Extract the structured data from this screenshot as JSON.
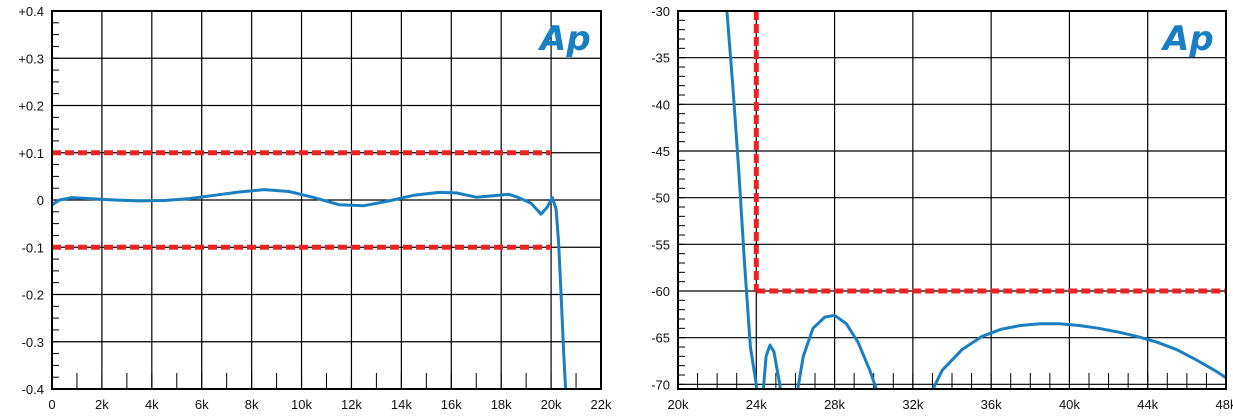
{
  "logo_text": "Ap",
  "colors": {
    "response_line": "#1a7fc1",
    "limit_line": "#ee2222",
    "grid": "#000000",
    "background": "#ffffff",
    "logo": "#1a7fc1"
  },
  "chart_data": [
    {
      "type": "line",
      "title": "",
      "xlabel": "",
      "ylabel": "",
      "xlim": [
        0,
        22000
      ],
      "ylim": [
        -0.4,
        0.4
      ],
      "grid": true,
      "legend": "none",
      "x_tick_values": [
        0,
        2000,
        4000,
        6000,
        8000,
        10000,
        12000,
        14000,
        16000,
        18000,
        20000,
        22000
      ],
      "x_tick_labels": [
        "0",
        "2k",
        "4k",
        "6k",
        "8k",
        "10k",
        "12k",
        "14k",
        "16k",
        "18k",
        "20k",
        "22k"
      ],
      "y_tick_values": [
        0.4,
        0.3,
        0.2,
        0.1,
        0,
        -0.1,
        -0.2,
        -0.3,
        -0.4
      ],
      "y_tick_labels": [
        "+0.4",
        "+0.3",
        "+0.2",
        "+0.1",
        "0",
        "-0.1",
        "-0.2",
        "-0.3",
        "-0.4"
      ],
      "series": [
        {
          "role": "response",
          "x": [
            0,
            300,
            800,
            1500,
            2500,
            3500,
            4500,
            5500,
            6500,
            7500,
            8500,
            9500,
            10500,
            11500,
            12500,
            13500,
            14500,
            15500,
            16200,
            17000,
            17700,
            18300,
            18700,
            19200,
            19600,
            19850,
            20050,
            20200,
            20300,
            20400,
            20500,
            20600
          ],
          "y": [
            -0.01,
            0.0,
            0.005,
            0.003,
            0.0,
            -0.002,
            -0.001,
            0.003,
            0.01,
            0.017,
            0.022,
            0.018,
            0.005,
            -0.01,
            -0.012,
            -0.002,
            0.01,
            0.016,
            0.015,
            0.006,
            0.009,
            0.012,
            0.005,
            -0.007,
            -0.03,
            -0.015,
            0.005,
            -0.02,
            -0.09,
            -0.2,
            -0.32,
            -0.42
          ]
        }
      ],
      "limits": [
        {
          "y": 0.1,
          "x_start": 0,
          "x_end": 20000
        },
        {
          "y": -0.1,
          "x_start": 0,
          "x_end": 20000
        }
      ]
    },
    {
      "type": "line",
      "title": "",
      "xlabel": "",
      "ylabel": "",
      "xlim": [
        20000,
        48000
      ],
      "ylim": [
        -70.5,
        -30
      ],
      "grid": true,
      "legend": "none",
      "x_tick_values": [
        20000,
        24000,
        28000,
        32000,
        36000,
        40000,
        44000,
        48000
      ],
      "x_tick_labels": [
        "20k",
        "24k",
        "28k",
        "32k",
        "36k",
        "40k",
        "44k",
        "48k"
      ],
      "y_tick_values": [
        -30,
        -35,
        -40,
        -45,
        -50,
        -55,
        -60,
        -65,
        -70
      ],
      "y_tick_labels": [
        "-30",
        "-35",
        "-40",
        "-45",
        "-50",
        "-55",
        "-60",
        "-65",
        "-70"
      ],
      "series": [
        {
          "role": "response",
          "x": [
            22500,
            22800,
            23100,
            23400,
            23700,
            24000,
            24100
          ],
          "y": [
            -30,
            -38,
            -47,
            -57,
            -66,
            -70,
            -72
          ]
        },
        {
          "role": "response",
          "x": [
            24300,
            24500,
            24700,
            24900,
            25200,
            25300
          ],
          "y": [
            -72,
            -67,
            -65.8,
            -66.5,
            -70,
            -72
          ]
        },
        {
          "role": "response",
          "x": [
            26000,
            26400,
            26900,
            27500,
            28000,
            28600,
            29200,
            29800,
            30300
          ],
          "y": [
            -72,
            -67,
            -64,
            -62.8,
            -62.6,
            -63.5,
            -65.5,
            -68.5,
            -71.5
          ]
        },
        {
          "role": "response",
          "x": [
            32800,
            33500,
            34500,
            35500,
            36500,
            37500,
            38500,
            39500,
            40500,
            41500,
            42500,
            43500,
            44500,
            45500,
            46500,
            47500,
            48000
          ],
          "y": [
            -71.5,
            -68.5,
            -66.3,
            -64.9,
            -64.1,
            -63.7,
            -63.5,
            -63.5,
            -63.7,
            -64,
            -64.4,
            -64.9,
            -65.5,
            -66.3,
            -67.4,
            -68.6,
            -69.3
          ]
        }
      ],
      "limits": [
        {
          "x": 24000,
          "y_start": -30,
          "y_end": -60
        },
        {
          "y": -60,
          "x_start": 24000,
          "x_end": 48000
        }
      ]
    }
  ]
}
